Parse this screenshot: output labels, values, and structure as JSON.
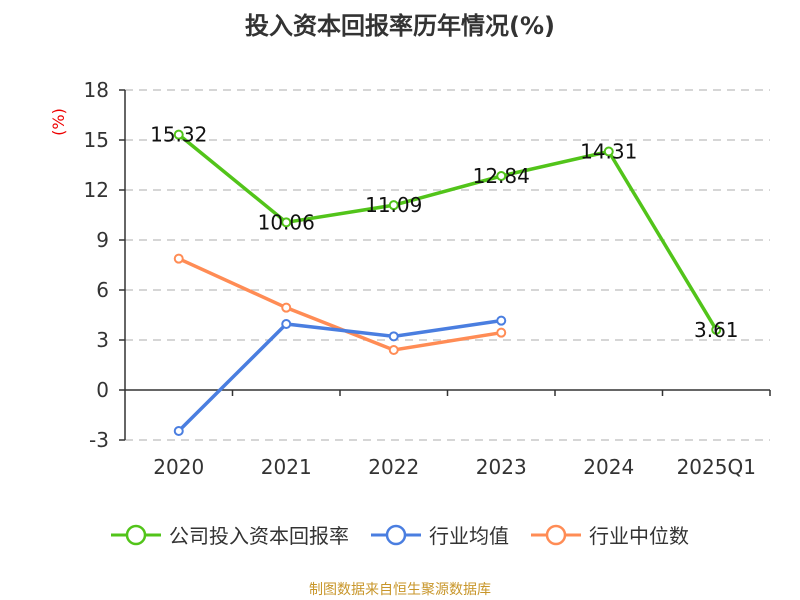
{
  "chart_data": {
    "type": "line",
    "title": "投入资本回报率历年情况(%)",
    "ylabel": "(%)",
    "xlabel": "",
    "categories": [
      "2020",
      "2021",
      "2022",
      "2023",
      "2024",
      "2025Q1"
    ],
    "ylim": [
      -3,
      18
    ],
    "yticks": [
      -3,
      0,
      3,
      6,
      9,
      12,
      15,
      18
    ],
    "grid": true,
    "legend_position": "bottom",
    "series": [
      {
        "name": "公司投入资本回报率",
        "color": "#52c41a",
        "values": [
          15.32,
          10.06,
          11.09,
          12.84,
          14.31,
          3.61
        ],
        "labels": [
          "15.32",
          "10.06",
          "11.09",
          "12.84",
          "14.31",
          "3.61"
        ]
      },
      {
        "name": "行业均值",
        "color": "#4a7ee0",
        "values": [
          -2.46,
          3.96,
          3.22,
          4.16,
          null,
          null
        ]
      },
      {
        "name": "行业中位数",
        "color": "#ff8c55",
        "values": [
          7.88,
          4.94,
          2.4,
          3.44,
          null,
          null
        ]
      }
    ]
  },
  "source": "制图数据来自恒生聚源数据库"
}
